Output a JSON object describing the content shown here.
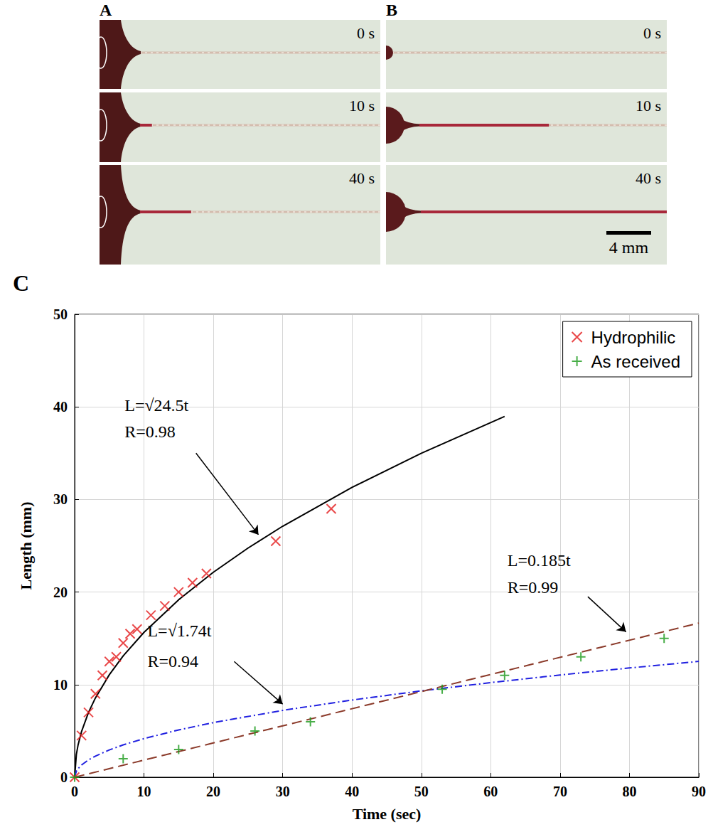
{
  "panels": [
    {
      "label": "A",
      "frames": [
        {
          "time": "0 s",
          "wet_length_mm": 0
        },
        {
          "time": "10 s",
          "wet_length_mm": 1
        },
        {
          "time": "40 s",
          "wet_length_mm": 4.5
        }
      ]
    },
    {
      "label": "B",
      "frames": [
        {
          "time": "0 s",
          "wet_length_mm": 0
        },
        {
          "time": "10 s",
          "wet_length_mm": 11.5
        },
        {
          "time": "40 s",
          "wet_length_mm": 23
        }
      ],
      "scale_bar": {
        "label": "4 mm",
        "value": 4
      }
    }
  ],
  "chart_data": {
    "panel": "C",
    "type": "scatter",
    "xlabel": "Time (sec)",
    "ylabel": "Length (mm)",
    "xlim": [
      0,
      90
    ],
    "xticks": [
      0,
      10,
      20,
      30,
      40,
      50,
      60,
      70,
      80,
      90
    ],
    "ylim": [
      0,
      50
    ],
    "yticks": [
      0,
      10,
      20,
      30,
      40,
      50
    ],
    "grid": true,
    "legend": "upper right",
    "series": [
      {
        "name": "Hydrophilic",
        "type": "scatter",
        "marker": "x",
        "color": "#e41a1c",
        "x": [
          0,
          1,
          2,
          3,
          4,
          5,
          6,
          7,
          8,
          9,
          11,
          13,
          15,
          17,
          19,
          29,
          37
        ],
        "values": [
          0,
          4.5,
          7,
          9,
          11,
          12.5,
          13,
          14.5,
          15.5,
          16,
          17.5,
          18.5,
          20,
          21,
          22,
          25.5,
          29
        ]
      },
      {
        "name": "As received",
        "type": "scatter",
        "marker": "+",
        "color": "#1a9a1a",
        "x": [
          0,
          7,
          15,
          26,
          34,
          53,
          62,
          73,
          85
        ],
        "values": [
          0,
          2,
          3,
          5,
          6,
          9.5,
          11,
          13,
          15
        ]
      }
    ],
    "fits": [
      {
        "type": "line",
        "annotation": [
          "L=√24.5t",
          "R=0.98"
        ],
        "color": "#000000",
        "line_style": "solid",
        "x": [
          0,
          0.25,
          0.5,
          1,
          2,
          3,
          5,
          7,
          10,
          15,
          20,
          25,
          30,
          40,
          50,
          62
        ],
        "values": [
          0,
          2.47,
          3.5,
          4.95,
          7,
          8.57,
          11.07,
          13.1,
          15.65,
          19.17,
          22.14,
          24.75,
          27.11,
          31.3,
          35,
          38.97
        ]
      },
      {
        "type": "line",
        "annotation": [
          "L=√1.74t",
          "R=0.94"
        ],
        "color": "#2020e0",
        "line_style": "dashdot",
        "x": [
          0,
          0.25,
          0.5,
          1,
          2,
          3,
          5,
          7,
          10,
          15,
          20,
          30,
          40,
          50,
          60,
          70,
          80,
          90
        ],
        "values": [
          0,
          0.66,
          0.93,
          1.32,
          1.87,
          2.28,
          2.95,
          3.49,
          4.17,
          5.11,
          5.9,
          7.22,
          8.34,
          9.33,
          10.22,
          11.04,
          11.8,
          12.51
        ]
      },
      {
        "type": "line",
        "annotation": [
          "L=0.185t",
          "R=0.99"
        ],
        "color": "#8b3a2a",
        "line_style": "dashed",
        "x": [
          0,
          90
        ],
        "values": [
          0,
          16.65
        ]
      }
    ]
  }
}
